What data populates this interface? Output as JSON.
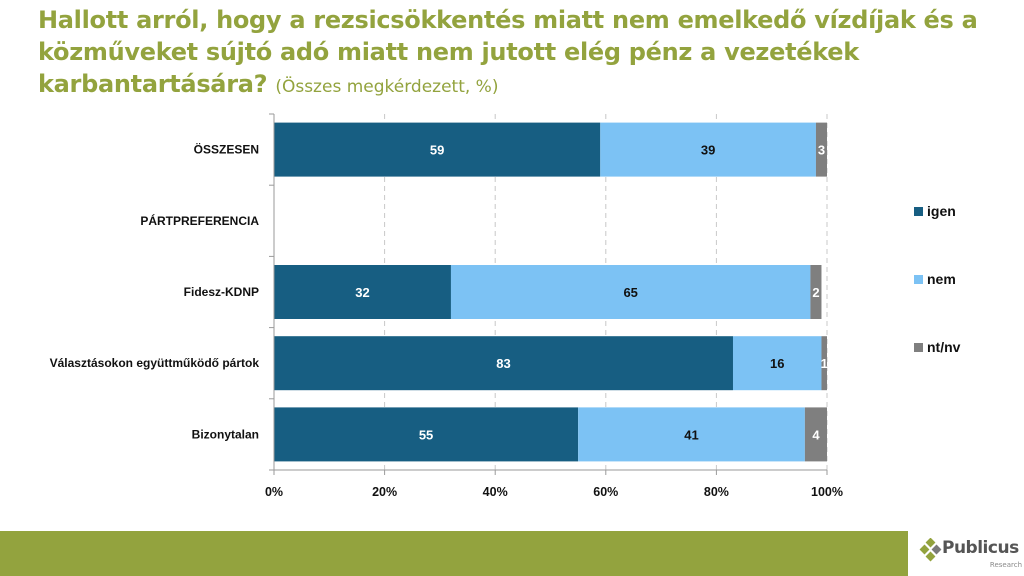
{
  "title": {
    "main": "Hallott arról, hogy a rezsicsökkentés miatt nem emelkedő vízdíjak és a közműveket sújtó adó miatt nem jutott elég pénz a vezetékek karbantartására?",
    "subtitle": "(Összes megkérdezett, %)"
  },
  "colors": {
    "title": "#93a33e",
    "igen": "#175e82",
    "nem": "#7cc2f4",
    "ntnv": "#7f7f7f",
    "footer": "#93a33e"
  },
  "chart_data": {
    "type": "bar",
    "orientation": "horizontal",
    "stacked": true,
    "title": "Hallott arról, hogy a rezsicsökkentés miatt nem emelkedő vízdíjak és a közműveket sújtó adó miatt nem jutott elég pénz a vezetékek karbantartására?",
    "subtitle": "(Összes megkérdezett, %)",
    "xlabel": "",
    "ylabel": "",
    "xlim": [
      0,
      100
    ],
    "x_ticks": [
      "0%",
      "20%",
      "40%",
      "60%",
      "80%",
      "100%"
    ],
    "grid": "vertical dashed",
    "legend_position": "right",
    "categories": [
      "ÖSSZESEN",
      "PÁRTPREFERENCIA",
      "Fidesz-KDNP",
      "Választásokon együttműködő pártok",
      "Bizonytalan"
    ],
    "series": [
      {
        "name": "igen",
        "color": "#175e82",
        "label_color": "#ffffff",
        "values": [
          59,
          null,
          32,
          83,
          55
        ]
      },
      {
        "name": "nem",
        "color": "#7cc2f4",
        "label_color": "#111111",
        "values": [
          39,
          null,
          65,
          16,
          41
        ]
      },
      {
        "name": "nt/nv",
        "color": "#7f7f7f",
        "label_color": "#ffffff",
        "values": [
          3,
          null,
          2,
          1,
          4
        ]
      }
    ]
  },
  "logo": {
    "name": "Publicus",
    "tagline": "Research"
  }
}
